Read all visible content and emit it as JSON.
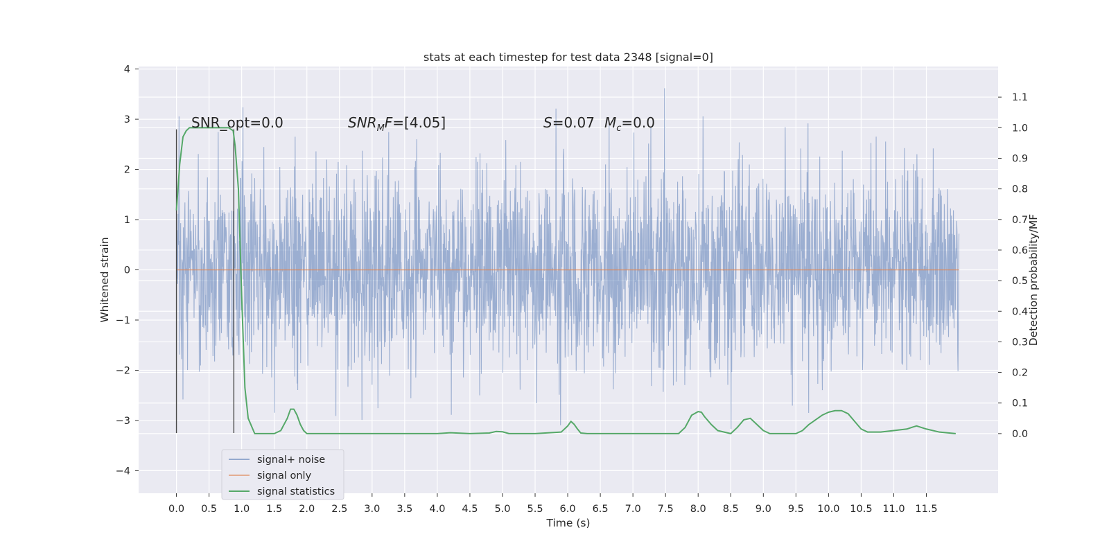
{
  "chart_data": {
    "type": "line",
    "title": "stats at each timestep for test data 2348 [signal=0]",
    "xlabel": "Time (s)",
    "ylabel": "Whitened strain",
    "ylabel_right": "Detection probability/MF",
    "xlim": [
      -0.58,
      12.6
    ],
    "ylim": [
      -4.45,
      4.05
    ],
    "ylim_right": [
      -0.195,
      1.2
    ],
    "x_ticks": [
      "0.0",
      "0.5",
      "1.0",
      "1.5",
      "2.0",
      "2.5",
      "3.0",
      "3.5",
      "4.0",
      "4.5",
      "5.0",
      "5.5",
      "6.0",
      "6.5",
      "7.0",
      "7.5",
      "8.0",
      "8.5",
      "9.0",
      "9.5",
      "10.0",
      "10.5",
      "11.0",
      "11.5"
    ],
    "y_ticks": [
      "4",
      "3",
      "2",
      "1",
      "0",
      "−1",
      "−2",
      "−3",
      "−4"
    ],
    "y_ticks_right": [
      "1.1",
      "1.0",
      "0.9",
      "0.8",
      "0.7",
      "0.6",
      "0.5",
      "0.4",
      "0.3",
      "0.2",
      "0.1",
      "0.0"
    ],
    "grid": true,
    "legend_position": "lower-left",
    "series": [
      {
        "name": "signal+ noise",
        "color": "#4c72b0",
        "axis": "left",
        "description_values": {
          "x_range": [
            0.0,
            12.0
          ],
          "typical_range": [
            -1.5,
            1.6
          ],
          "extremes": [
            -4.1,
            3.65
          ]
        }
      },
      {
        "name": "signal only",
        "color": "#dd8452",
        "axis": "left",
        "x": [
          0.0,
          12.0
        ],
        "y": [
          0.0,
          0.0
        ]
      },
      {
        "name": "signal statistics",
        "color": "#55a868",
        "axis": "right",
        "x": [
          0.0,
          0.05,
          0.1,
          0.15,
          0.2,
          0.3,
          0.5,
          0.7,
          0.8,
          0.87,
          0.9,
          0.95,
          1.0,
          1.05,
          1.1,
          1.2,
          1.5,
          1.6,
          1.7,
          1.75,
          1.8,
          1.85,
          1.9,
          1.95,
          2.0,
          2.1,
          3.0,
          4.0,
          4.2,
          4.5,
          4.8,
          4.9,
          5.0,
          5.1,
          5.5,
          5.9,
          6.0,
          6.05,
          6.1,
          6.15,
          6.2,
          6.3,
          7.0,
          7.7,
          7.8,
          7.9,
          8.0,
          8.05,
          8.1,
          8.2,
          8.3,
          8.5,
          8.6,
          8.7,
          8.8,
          8.9,
          9.0,
          9.1,
          9.5,
          9.6,
          9.7,
          9.8,
          9.9,
          10.0,
          10.1,
          10.2,
          10.3,
          10.4,
          10.5,
          10.6,
          10.8,
          11.0,
          11.2,
          11.3,
          11.35,
          11.5,
          11.7,
          11.95
        ],
        "y": [
          0.73,
          0.88,
          0.97,
          0.99,
          1.0,
          1.0,
          1.0,
          1.0,
          1.0,
          0.99,
          0.94,
          0.8,
          0.45,
          0.15,
          0.05,
          0.0,
          0.0,
          0.01,
          0.05,
          0.08,
          0.08,
          0.06,
          0.03,
          0.01,
          0.0,
          0.0,
          0.0,
          0.0,
          0.003,
          0.0,
          0.002,
          0.007,
          0.006,
          0.0,
          0.0,
          0.005,
          0.025,
          0.04,
          0.03,
          0.015,
          0.002,
          0.0,
          0.0,
          0.0,
          0.02,
          0.06,
          0.072,
          0.07,
          0.055,
          0.03,
          0.01,
          0.0,
          0.02,
          0.045,
          0.05,
          0.03,
          0.01,
          0.0,
          0.0,
          0.01,
          0.03,
          0.045,
          0.06,
          0.07,
          0.075,
          0.075,
          0.065,
          0.04,
          0.015,
          0.005,
          0.005,
          0.01,
          0.015,
          0.022,
          0.025,
          0.015,
          0.005,
          0.0
        ]
      }
    ],
    "vertical_markers_x": [
      0.0,
      0.88
    ],
    "annotations": [
      {
        "key": "snr_opt",
        "text": "SNR_opt=0.0"
      },
      {
        "key": "snr_mf",
        "prefix": "SNR",
        "sub": "M",
        "suffix_italic": "F",
        "rest": "=[4.05]"
      },
      {
        "key": "s_mc",
        "s": "S",
        "s_rest": "=0.07",
        "m": "M",
        "m_sub": "c",
        "m_rest": "=0.0"
      }
    ]
  },
  "colors": {
    "plot_bg": "#eaeaf2",
    "grid": "#ffffff",
    "noise": "#4c72b0",
    "signal": "#dd8452",
    "stat": "#55a868",
    "marker": "#4a4a4a"
  }
}
